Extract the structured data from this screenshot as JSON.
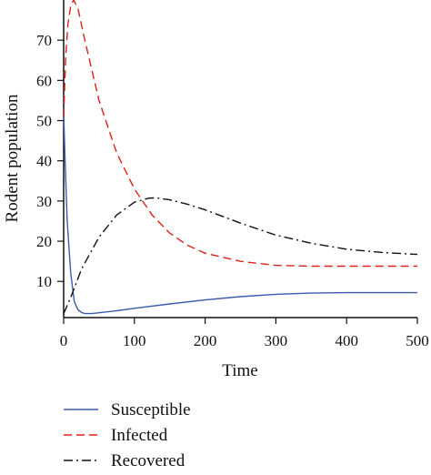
{
  "chart_data": {
    "type": "line",
    "xlabel": "Time",
    "ylabel": "Rodent population",
    "xlim": [
      0,
      500
    ],
    "ylim": [
      1,
      80
    ],
    "x_ticks": [
      0,
      100,
      200,
      300,
      400,
      500
    ],
    "y_ticks": [
      10,
      20,
      30,
      40,
      50,
      60,
      70
    ],
    "grid": false,
    "legend_position": "below",
    "series": [
      {
        "name": "Susceptible",
        "color": "#3b5bab",
        "style": "solid",
        "x": [
          0,
          2,
          5,
          10,
          15,
          20,
          25,
          30,
          40,
          50,
          75,
          100,
          150,
          200,
          250,
          300,
          350,
          400,
          450,
          500
        ],
        "y": [
          52,
          40,
          25,
          12,
          5,
          3,
          2.3,
          2,
          2,
          2.2,
          2.7,
          3.3,
          4.4,
          5.4,
          6.2,
          6.8,
          7.1,
          7.2,
          7.2,
          7.2
        ]
      },
      {
        "name": "Infected",
        "color": "#e0201b",
        "style": "dashed",
        "x": [
          0,
          3,
          6,
          10,
          14,
          20,
          30,
          50,
          75,
          100,
          125,
          150,
          175,
          200,
          250,
          300,
          350,
          400,
          450,
          500
        ],
        "y": [
          51,
          66,
          74,
          78.5,
          80,
          78,
          70,
          55,
          42,
          33,
          26.5,
          22,
          19,
          17,
          15,
          14,
          13.8,
          13.8,
          13.8,
          13.8
        ]
      },
      {
        "name": "Recovered",
        "color": "#111111",
        "style": "dashdot",
        "x": [
          0,
          10,
          25,
          50,
          75,
          100,
          120,
          130,
          150,
          175,
          200,
          250,
          300,
          350,
          400,
          450,
          500
        ],
        "y": [
          2,
          6,
          13,
          21,
          26.5,
          29.7,
          30.7,
          30.8,
          30.3,
          29.2,
          27.8,
          24.5,
          21.5,
          19.5,
          18,
          17.2,
          16.7
        ]
      }
    ]
  }
}
